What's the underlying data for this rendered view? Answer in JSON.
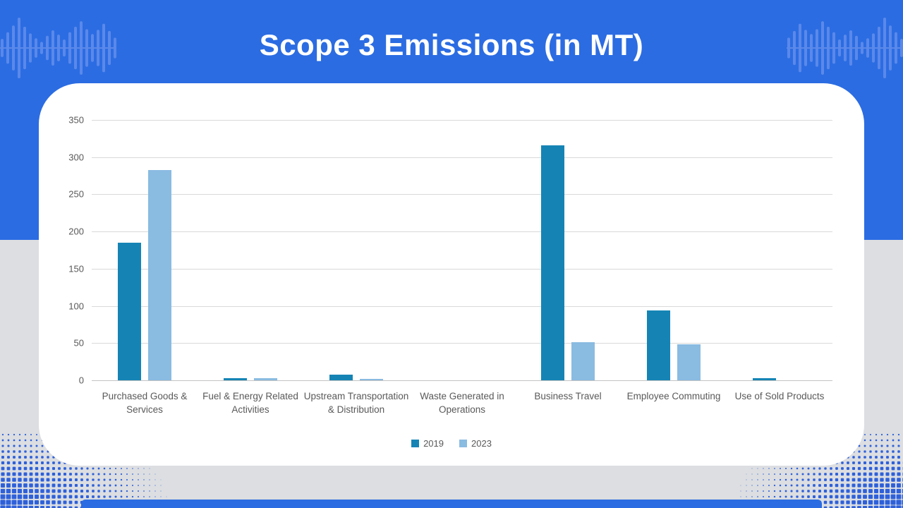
{
  "title": "Scope 3 Emissions (in MT)",
  "chart_data": {
    "type": "bar",
    "title": "Scope 3 Emissions (in MT)",
    "categories": [
      "Purchased Goods & Services",
      "Fuel & Energy Related Activities",
      "Upstream Transportation & Distribution",
      "Waste Generated in Operations",
      "Business Travel",
      "Employee Commuting",
      "Use of Sold Products"
    ],
    "series": [
      {
        "name": "2019",
        "color": "#1584b5",
        "values": [
          185,
          3,
          8,
          0,
          316,
          94,
          3
        ]
      },
      {
        "name": "2023",
        "color": "#8abbe1",
        "values": [
          283,
          3,
          2,
          0,
          51,
          48,
          0
        ]
      }
    ],
    "ylim": [
      0,
      350
    ],
    "yticks": [
      0,
      50,
      100,
      150,
      200,
      250,
      300,
      350
    ],
    "xlabel": "",
    "ylabel": "",
    "grid": true,
    "legend_position": "bottom"
  },
  "theme": {
    "header_blue": "#2b6ce2",
    "waveform_blue": "#5b89ea",
    "background_gray": "#dcdee1",
    "card_white": "#ffffff",
    "gridline": "#d9d9d9",
    "axis_line": "#c3c3c3",
    "text_gray": "#595959",
    "dots_blue": "#2459d9"
  }
}
